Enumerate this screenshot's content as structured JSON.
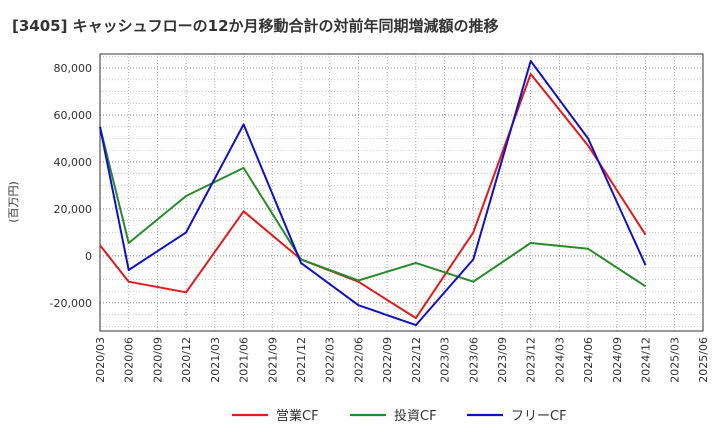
{
  "chart_data": {
    "type": "line",
    "title": "[3405]  キャッシュフローの12か月移動合計の対前年同期増減額の推移",
    "ylabel": "(百万円)",
    "xlabel": "",
    "ylim": [
      -32000,
      86000
    ],
    "yticks": [
      -20000,
      0,
      20000,
      40000,
      60000,
      80000
    ],
    "ytick_labels": [
      "-20,000",
      "0",
      "20,000",
      "40,000",
      "60,000",
      "80,000"
    ],
    "categories": [
      "2020/03",
      "2020/06",
      "2020/09",
      "2020/12",
      "2021/03",
      "2021/06",
      "2021/09",
      "2021/12",
      "2022/03",
      "2022/06",
      "2022/09",
      "2022/12",
      "2023/03",
      "2023/06",
      "2023/09",
      "2023/12",
      "2024/03",
      "2024/06",
      "2024/09",
      "2024/12",
      "2025/03",
      "2025/06"
    ],
    "grid": true,
    "legend_position": "bottom",
    "series": [
      {
        "name": "営業CF",
        "color": "#e31a1c",
        "values": [
          4500,
          -11000,
          null,
          -15500,
          null,
          19000,
          null,
          -1500,
          null,
          -11000,
          null,
          -26500,
          null,
          10000,
          null,
          77500,
          null,
          47000,
          null,
          9000,
          null,
          null
        ]
      },
      {
        "name": "投資CF",
        "color": "#2a8a2a",
        "values": [
          55000,
          5500,
          null,
          25500,
          null,
          37500,
          null,
          -1500,
          null,
          -10500,
          null,
          -3000,
          null,
          -11000,
          null,
          5500,
          null,
          3000,
          null,
          -13000,
          null,
          null
        ]
      },
      {
        "name": "フリーCF",
        "color": "#1010cc",
        "values": [
          55000,
          -6000,
          null,
          10000,
          null,
          56000,
          null,
          -3000,
          null,
          -21000,
          null,
          -29500,
          null,
          -1500,
          null,
          83000,
          null,
          50000,
          null,
          -4000,
          null,
          null
        ]
      }
    ]
  }
}
